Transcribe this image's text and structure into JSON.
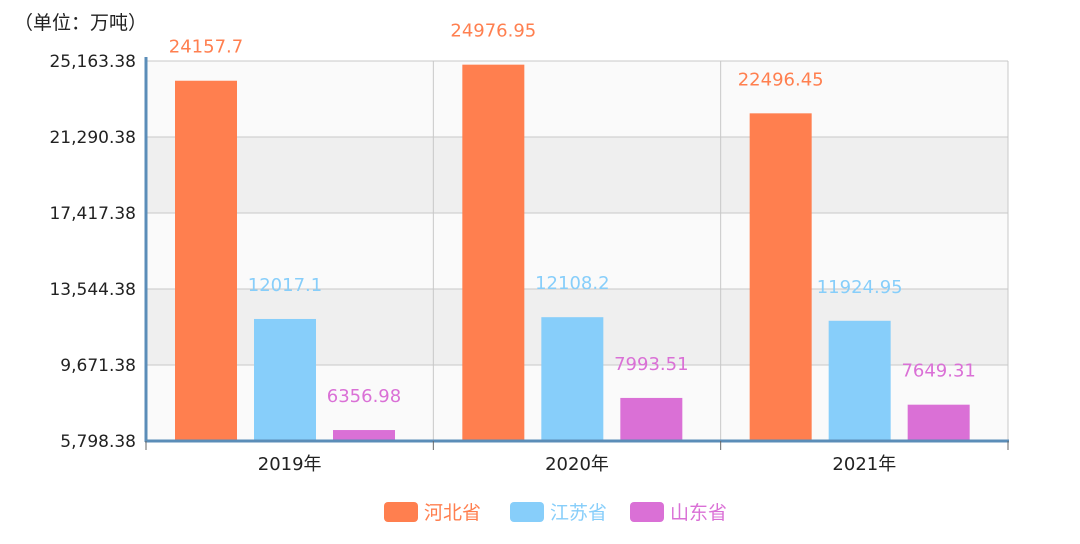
{
  "unit_label": "（单位：万吨）",
  "chart_data": {
    "type": "bar",
    "categories": [
      "2019年",
      "2020年",
      "2021年"
    ],
    "series": [
      {
        "name": "河北省",
        "values": [
          24157.7,
          24976.95,
          22496.45
        ],
        "labels": [
          "24157.7",
          "24976.95",
          "22496.45"
        ],
        "color": "#ff7f4f"
      },
      {
        "name": "江苏省",
        "values": [
          12017.1,
          12108.2,
          11924.95
        ],
        "labels": [
          "12017.1",
          "12108.2",
          "11924.95"
        ],
        "color": "#87cefa"
      },
      {
        "name": "山东省",
        "values": [
          6356.98,
          7993.51,
          7649.31
        ],
        "labels": [
          "6356.98",
          "7993.51",
          "7649.31"
        ],
        "color": "#da70d6"
      }
    ],
    "y_ticks": [
      "5,798.38",
      "9,671.38",
      "13,544.38",
      "17,417.38",
      "21,290.38",
      "25,163.38"
    ],
    "ylim": [
      5798.38,
      25163.38
    ],
    "grid": true,
    "legend_position": "bottom-center"
  }
}
